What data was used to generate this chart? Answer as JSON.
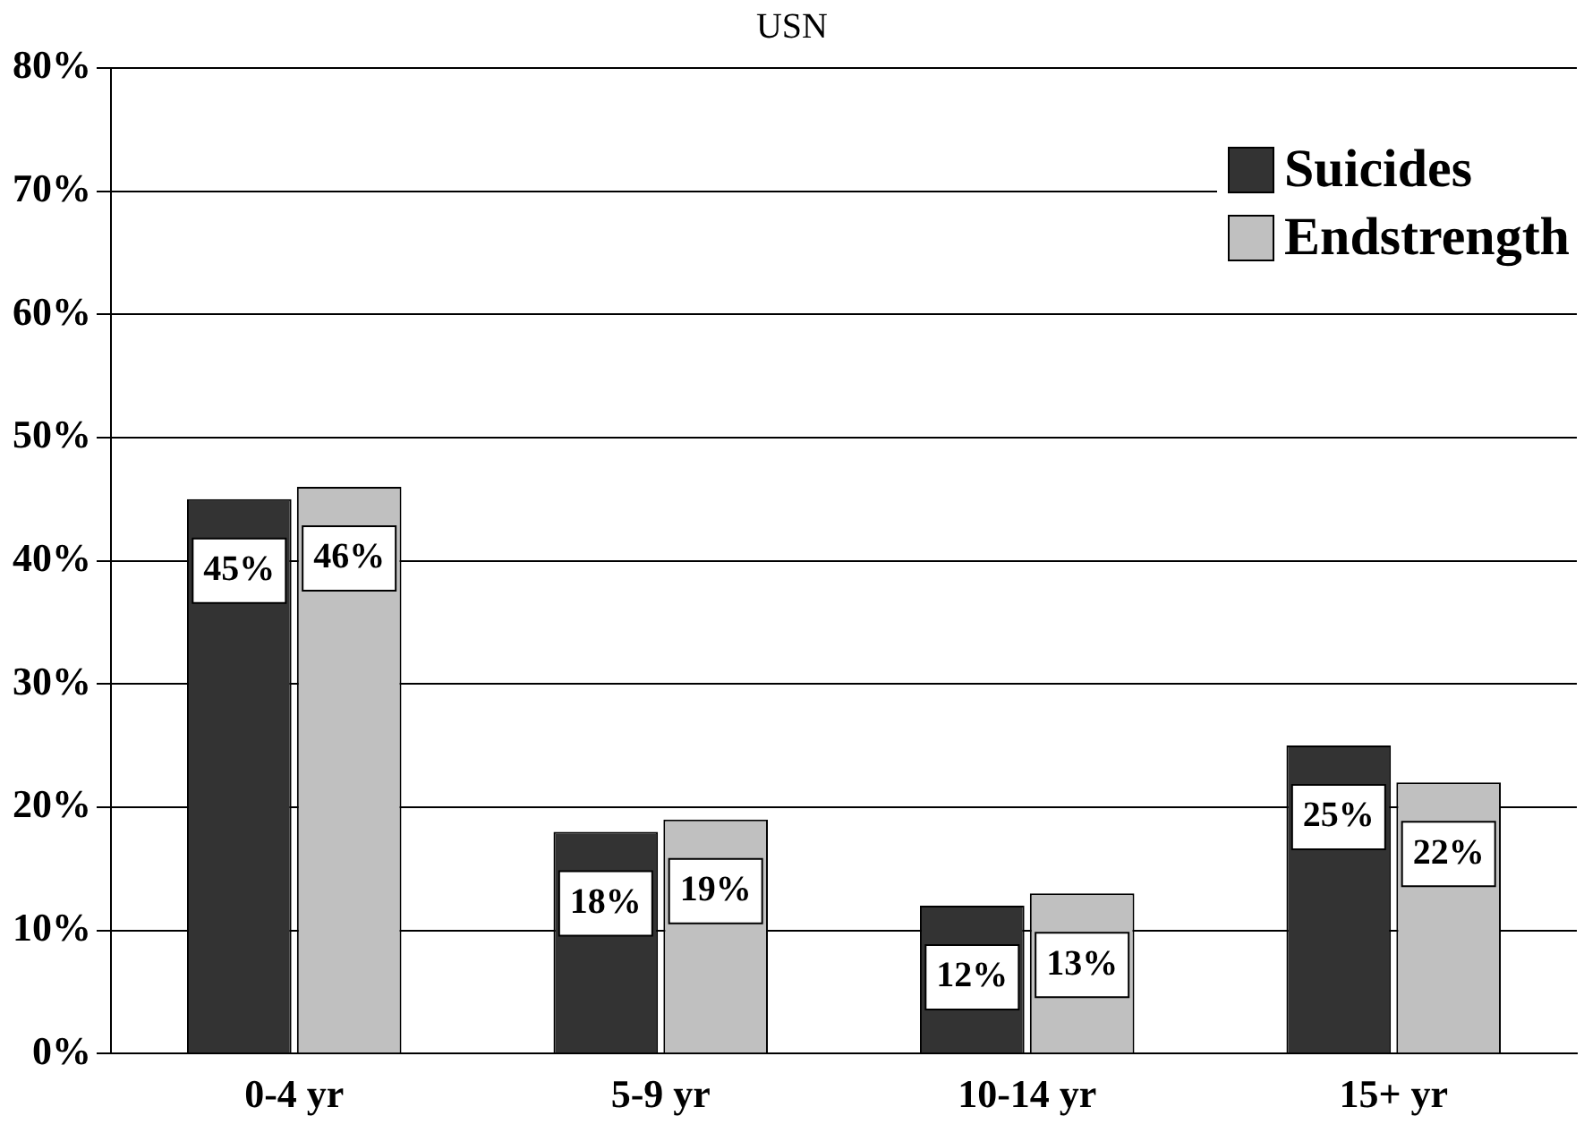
{
  "chart_data": {
    "type": "bar",
    "title": "USN",
    "categories": [
      "0-4 yr",
      "5-9 yr",
      "10-14 yr",
      "15+ yr"
    ],
    "series": [
      {
        "name": "Suicides",
        "color": "#333333",
        "values": [
          45,
          18,
          12,
          25
        ],
        "value_labels": [
          "45%",
          "18%",
          "12%",
          "25%"
        ]
      },
      {
        "name": "Endstrength",
        "color": "#c0c0c0",
        "values": [
          46,
          19,
          13,
          22
        ],
        "value_labels": [
          "46%",
          "19%",
          "13%",
          "22%"
        ]
      }
    ],
    "ylim": [
      0,
      80
    ],
    "yticks": [
      {
        "value": 0,
        "label": "0%"
      },
      {
        "value": 10,
        "label": "10%"
      },
      {
        "value": 20,
        "label": "20%"
      },
      {
        "value": 30,
        "label": "30%"
      },
      {
        "value": 40,
        "label": "40%"
      },
      {
        "value": 50,
        "label": "50%"
      },
      {
        "value": 60,
        "label": "60%"
      },
      {
        "value": 70,
        "label": "70%"
      },
      {
        "value": 80,
        "label": "80%"
      }
    ],
    "grid": "y",
    "legend": "top right"
  }
}
